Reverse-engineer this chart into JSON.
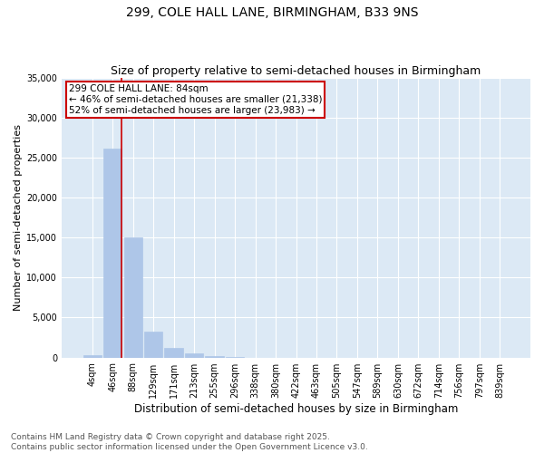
{
  "title1": "299, COLE HALL LANE, BIRMINGHAM, B33 9NS",
  "title2": "Size of property relative to semi-detached houses in Birmingham",
  "xlabel": "Distribution of semi-detached houses by size in Birmingham",
  "ylabel": "Number of semi-detached properties",
  "categories": [
    "4sqm",
    "46sqm",
    "88sqm",
    "129sqm",
    "171sqm",
    "213sqm",
    "255sqm",
    "296sqm",
    "338sqm",
    "380sqm",
    "422sqm",
    "463sqm",
    "505sqm",
    "547sqm",
    "589sqm",
    "630sqm",
    "672sqm",
    "714sqm",
    "756sqm",
    "797sqm",
    "839sqm"
  ],
  "values": [
    310,
    26100,
    15050,
    3200,
    1200,
    480,
    190,
    90,
    0,
    0,
    0,
    0,
    0,
    0,
    0,
    0,
    0,
    0,
    0,
    0,
    0
  ],
  "bar_color": "#aec6e8",
  "bar_edge_color": "#aec6e8",
  "vline_color": "#cc0000",
  "annotation_line1": "299 COLE HALL LANE: 84sqm",
  "annotation_line2": "← 46% of semi-detached houses are smaller (21,338)",
  "annotation_line3": "52% of semi-detached houses are larger (23,983) →",
  "annotation_box_color": "#cc0000",
  "ylim": [
    0,
    35000
  ],
  "yticks": [
    0,
    5000,
    10000,
    15000,
    20000,
    25000,
    30000,
    35000
  ],
  "grid_color": "#ffffff",
  "bg_color": "#dce9f5",
  "footer1": "Contains HM Land Registry data © Crown copyright and database right 2025.",
  "footer2": "Contains public sector information licensed under the Open Government Licence v3.0.",
  "title1_fontsize": 10,
  "title2_fontsize": 9,
  "xlabel_fontsize": 8.5,
  "ylabel_fontsize": 8,
  "tick_fontsize": 7,
  "footer_fontsize": 6.5,
  "annotation_fontsize": 7.5
}
